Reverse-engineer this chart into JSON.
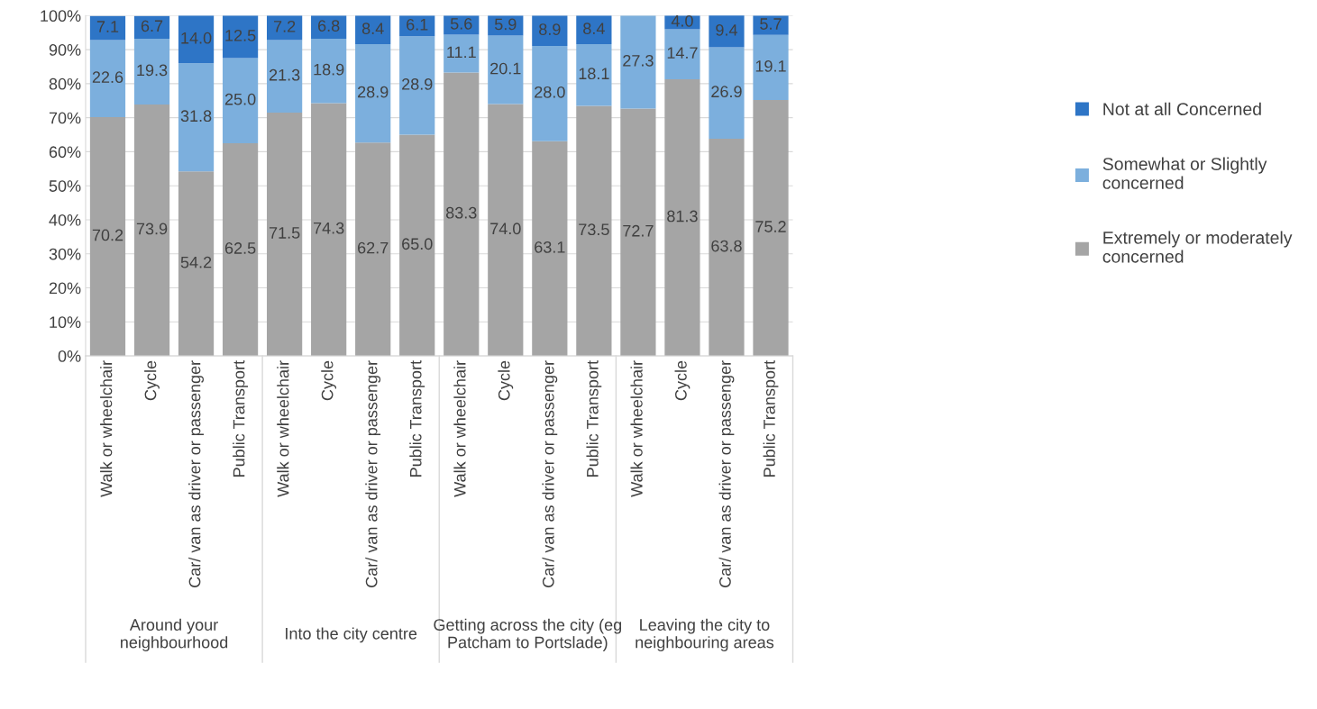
{
  "chart_data": {
    "type": "bar",
    "stacked": true,
    "categories": [
      "Walk or wheelchair",
      "Cycle",
      "Car/ van as driver or passenger",
      "Public Transport",
      "Walk or wheelchair",
      "Cycle",
      "Car/ van as driver or passenger",
      "Public Transport",
      "Walk or wheelchair",
      "Cycle",
      "Car/ van as driver or passenger",
      "Public Transport",
      "Walk or wheelchair",
      "Cycle",
      "Car/ van as driver or passenger",
      "Public Transport"
    ],
    "series": [
      {
        "name": "Extremely or moderately\nconcerned",
        "color": "#a5a5a5",
        "values": [
          70.2,
          73.9,
          54.2,
          62.5,
          71.5,
          74.3,
          62.7,
          65.0,
          83.3,
          74.0,
          63.1,
          73.5,
          72.7,
          81.3,
          63.8,
          75.2
        ],
        "value_labels": [
          "70.2",
          "73.9",
          "54.2",
          "62.5",
          "71.5",
          "74.3",
          "62.7",
          "65.0",
          "83.3",
          "74.0",
          "63.1",
          "73.5",
          "72.7",
          "81.3",
          "63.8",
          "75.2"
        ]
      },
      {
        "name": "Somewhat or Slightly\nconcerned",
        "color": "#7cafdd",
        "values": [
          22.6,
          19.3,
          31.8,
          25.0,
          21.3,
          18.9,
          28.9,
          28.9,
          11.1,
          20.1,
          28.0,
          18.1,
          27.3,
          14.7,
          26.9,
          19.1
        ],
        "value_labels": [
          "22.6",
          "19.3",
          "31.8",
          "25.0",
          "21.3",
          "18.9",
          "28.9",
          "28.9",
          "11.1",
          "20.1",
          "28.0",
          "18.1",
          "27.3",
          "14.7",
          "26.9",
          "19.1"
        ]
      },
      {
        "name": "Not at all Concerned",
        "color": "#2e75c6",
        "values": [
          7.1,
          6.7,
          14.0,
          12.5,
          7.2,
          6.8,
          8.4,
          6.1,
          5.6,
          5.9,
          8.9,
          8.4,
          0,
          4.0,
          9.4,
          5.7
        ],
        "value_labels": [
          "7.1",
          "6.7",
          "14.0",
          "12.5",
          "7.2",
          "6.8",
          "8.4",
          "6.1",
          "5.6",
          "5.9",
          "8.9",
          "8.4",
          null,
          "4.0",
          "9.4",
          "5.7"
        ]
      }
    ],
    "ylim": [
      0,
      100
    ],
    "yticks": [
      {
        "value": 0,
        "label": "0%"
      },
      {
        "value": 10,
        "label": "10%"
      },
      {
        "value": 20,
        "label": "20%"
      },
      {
        "value": 30,
        "label": "30%"
      },
      {
        "value": 40,
        "label": "40%"
      },
      {
        "value": 50,
        "label": "50%"
      },
      {
        "value": 60,
        "label": "60%"
      },
      {
        "value": 70,
        "label": "70%"
      },
      {
        "value": 80,
        "label": "80%"
      },
      {
        "value": 90,
        "label": "90%"
      },
      {
        "value": 100,
        "label": "100%"
      }
    ],
    "grid": "y",
    "legend": "right",
    "annotations": [
      "Around your\nneighbourhood",
      "Into the city centre",
      "Getting across the city (eg\nPatcham to Portslade)",
      "Leaving the city to\nneighbouring areas"
    ]
  }
}
